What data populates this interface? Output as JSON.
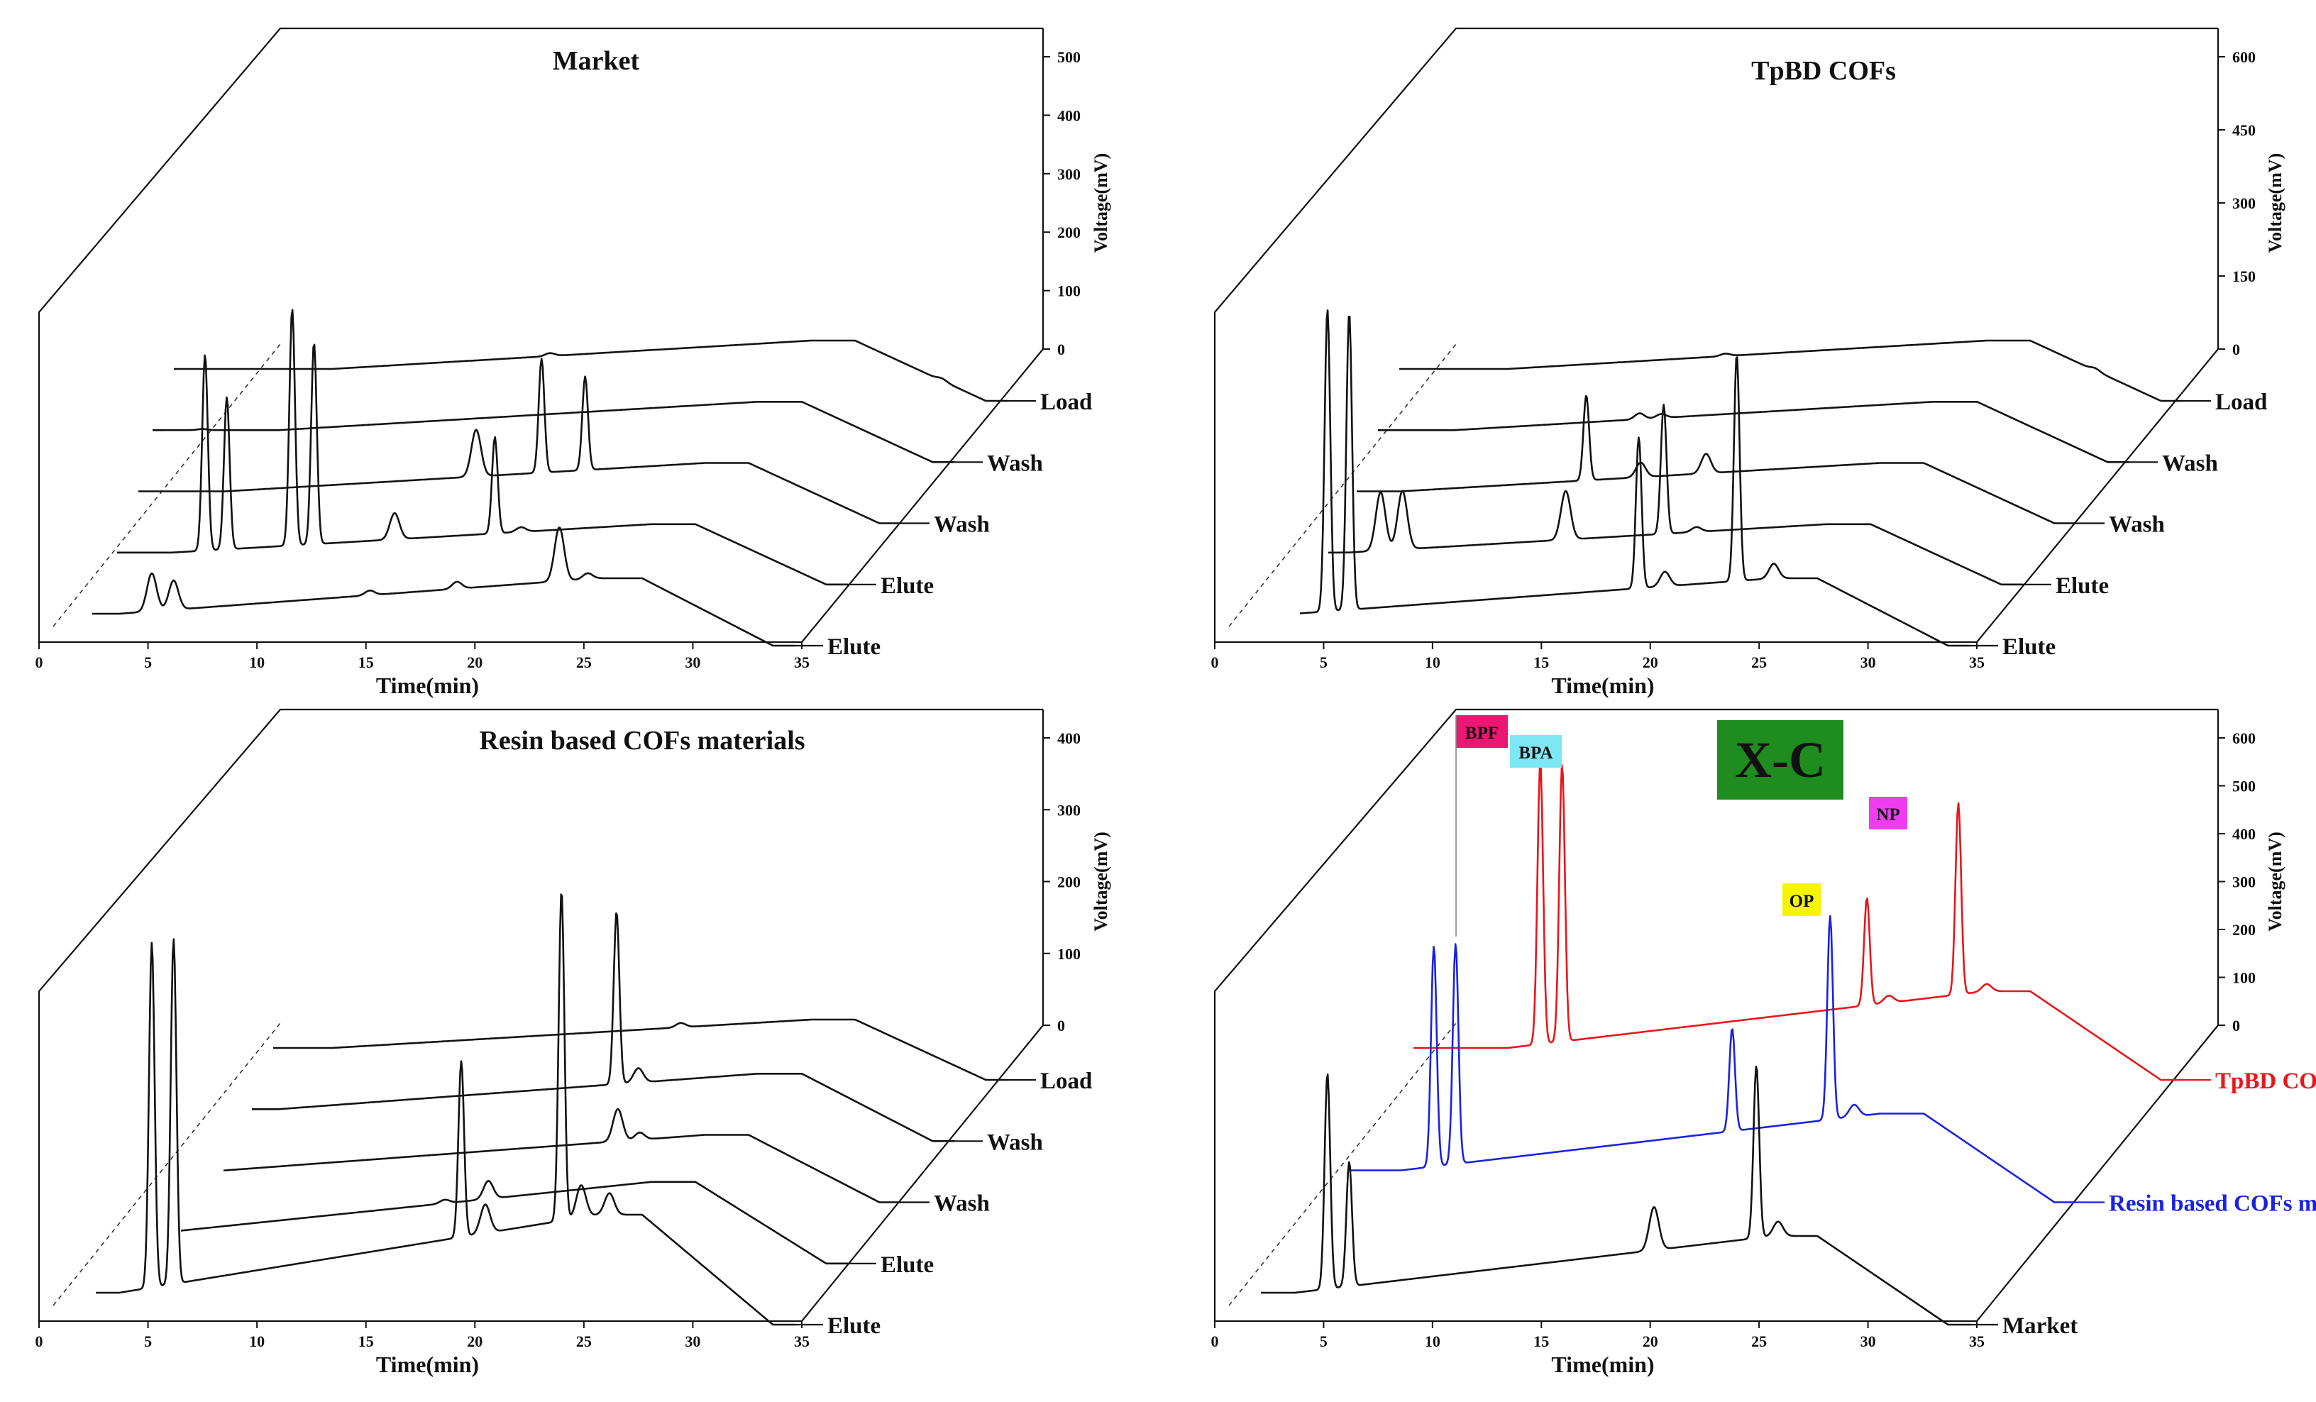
{
  "chart_data": [
    {
      "type": "line",
      "title": "Market",
      "xlabel": "Time(min)",
      "ylabel": "Voltage(mV)",
      "x_ticks": [
        "0",
        "5",
        "10",
        "15",
        "20",
        "25",
        "30",
        "35"
      ],
      "y_ticks": [
        "0",
        "100",
        "200",
        "300",
        "400",
        "500"
      ],
      "xlim": [
        0,
        35
      ],
      "ylim": [
        0,
        500
      ],
      "series": [
        {
          "name": "Load",
          "color": "#111111",
          "peaks": [
            [
              14,
              5
            ],
            [
              32,
              4
            ]
          ]
        },
        {
          "name": "Wash",
          "color": "#111111",
          "peaks": [
            [
              0.5,
              2
            ]
          ]
        },
        {
          "name": "Wash",
          "color": "#111111",
          "peaks": [
            [
              15.5,
              80
            ],
            [
              18.5,
              195
            ],
            [
              20.5,
              160
            ]
          ]
        },
        {
          "name": "Elute",
          "color": "#111111",
          "peaks": [
            [
              5.5,
              335
            ],
            [
              6.5,
              260
            ],
            [
              9.5,
              405
            ],
            [
              10.5,
              345
            ],
            [
              14.2,
              45
            ],
            [
              18.8,
              165
            ],
            [
              20,
              8
            ]
          ]
        },
        {
          "name": "Elute",
          "color": "#111111",
          "peaks": [
            [
              5.5,
              65
            ],
            [
              6.5,
              50
            ],
            [
              15.5,
              8
            ],
            [
              19.5,
              12
            ],
            [
              24.2,
              92
            ],
            [
              25.5,
              10
            ]
          ]
        }
      ]
    },
    {
      "type": "line",
      "title": "TpBD COFs",
      "xlabel": "Time(min)",
      "ylabel": "Voltage(mV)",
      "x_ticks": [
        "0",
        "5",
        "10",
        "15",
        "20",
        "25",
        "30",
        "35"
      ],
      "y_ticks": [
        "0",
        "150",
        "300",
        "450",
        "600"
      ],
      "xlim": [
        0,
        35
      ],
      "ylim": [
        0,
        600
      ],
      "series": [
        {
          "name": "Load",
          "color": "#111111",
          "peaks": [
            [
              14,
              5
            ],
            [
              31,
              5
            ]
          ]
        },
        {
          "name": "Wash",
          "color": "#111111",
          "peaks": [
            [
              12.5,
              12
            ],
            [
              13.5,
              8
            ]
          ]
        },
        {
          "name": "Wash",
          "color": "#111111",
          "peaks": [
            [
              12.5,
              175
            ],
            [
              15,
              30
            ],
            [
              18,
              40
            ]
          ]
        },
        {
          "name": "Elute",
          "color": "#111111",
          "peaks": [
            [
              5.5,
              120
            ],
            [
              6.5,
              120
            ],
            [
              14,
              100
            ],
            [
              18.5,
              265
            ],
            [
              20,
              10
            ]
          ]
        },
        {
          "name": "Elute",
          "color": "#111111",
          "peaks": [
            [
              5.5,
              620
            ],
            [
              6.5,
              610
            ],
            [
              19.8,
              310
            ],
            [
              21,
              30
            ],
            [
              24.3,
              465
            ],
            [
              26,
              30
            ]
          ]
        }
      ]
    },
    {
      "type": "line",
      "title": "Resin based COFs materials",
      "xlabel": "Time(min)",
      "ylabel": "Voltage(mV)",
      "x_ticks": [
        "0",
        "5",
        "10",
        "15",
        "20",
        "25",
        "30",
        "35"
      ],
      "y_ticks": [
        "0",
        "100",
        "200",
        "300",
        "400"
      ],
      "xlim": [
        0,
        35
      ],
      "ylim": [
        0,
        400
      ],
      "series": [
        {
          "name": "Load",
          "color": "#111111",
          "peaks": [
            [
              20,
              6
            ]
          ]
        },
        {
          "name": "Wash",
          "color": "#111111",
          "peaks": [
            [
              19.5,
              240
            ],
            [
              20.5,
              20
            ]
          ]
        },
        {
          "name": "Wash",
          "color": "#111111",
          "peaks": [
            [
              22,
              45
            ],
            [
              23,
              10
            ]
          ]
        },
        {
          "name": "Elute",
          "color": "#111111",
          "peaks": [
            [
              16.5,
              5
            ],
            [
              18.5,
              25
            ]
          ]
        },
        {
          "name": "Elute",
          "color": "#111111",
          "peaks": [
            [
              5.5,
              480
            ],
            [
              6.5,
              480
            ],
            [
              19.7,
              245
            ],
            [
              20.8,
              40
            ],
            [
              24.3,
              460
            ],
            [
              25.2,
              45
            ],
            [
              26.5,
              30
            ]
          ]
        }
      ]
    },
    {
      "type": "line",
      "title": "",
      "xlabel": "Time(min)",
      "ylabel": "Voltage(mV)",
      "x_ticks": [
        "0",
        "5",
        "10",
        "15",
        "20",
        "25",
        "30",
        "35"
      ],
      "y_ticks": [
        "0",
        "100",
        "200",
        "300",
        "400",
        "500",
        "600"
      ],
      "xlim": [
        0,
        35
      ],
      "ylim": [
        0,
        600
      ],
      "series": [
        {
          "name": "TpBD COFs",
          "color": "#e8161a",
          "peaks": [
            [
              5.5,
              590
            ],
            [
              6.5,
              580
            ],
            [
              20.5,
              225
            ],
            [
              21.5,
              15
            ],
            [
              24.7,
              400
            ],
            [
              26,
              15
            ]
          ]
        },
        {
          "name": "Resin based COFs materials",
          "color": "#1a22e0",
          "peaks": [
            [
              5.5,
              460
            ],
            [
              6.5,
              460
            ],
            [
              19.2,
              215
            ],
            [
              23.7,
              425
            ],
            [
              24.8,
              25
            ]
          ]
        },
        {
          "name": "Market",
          "color": "#111111",
          "peaks": [
            [
              5.5,
              450
            ],
            [
              6.5,
              260
            ],
            [
              20.5,
              90
            ],
            [
              25.2,
              360
            ],
            [
              26.2,
              30
            ]
          ]
        }
      ],
      "annotations": [
        {
          "label": "BPF",
          "bg": "#ec1773"
        },
        {
          "label": "BPA",
          "bg": "#7ee7f5"
        },
        {
          "label": "OP",
          "bg": "#f5f500"
        },
        {
          "label": "NP",
          "bg": "#f03cf0"
        }
      ],
      "inset_label": "X-C",
      "inset_bg": "#1e8c1e"
    }
  ]
}
